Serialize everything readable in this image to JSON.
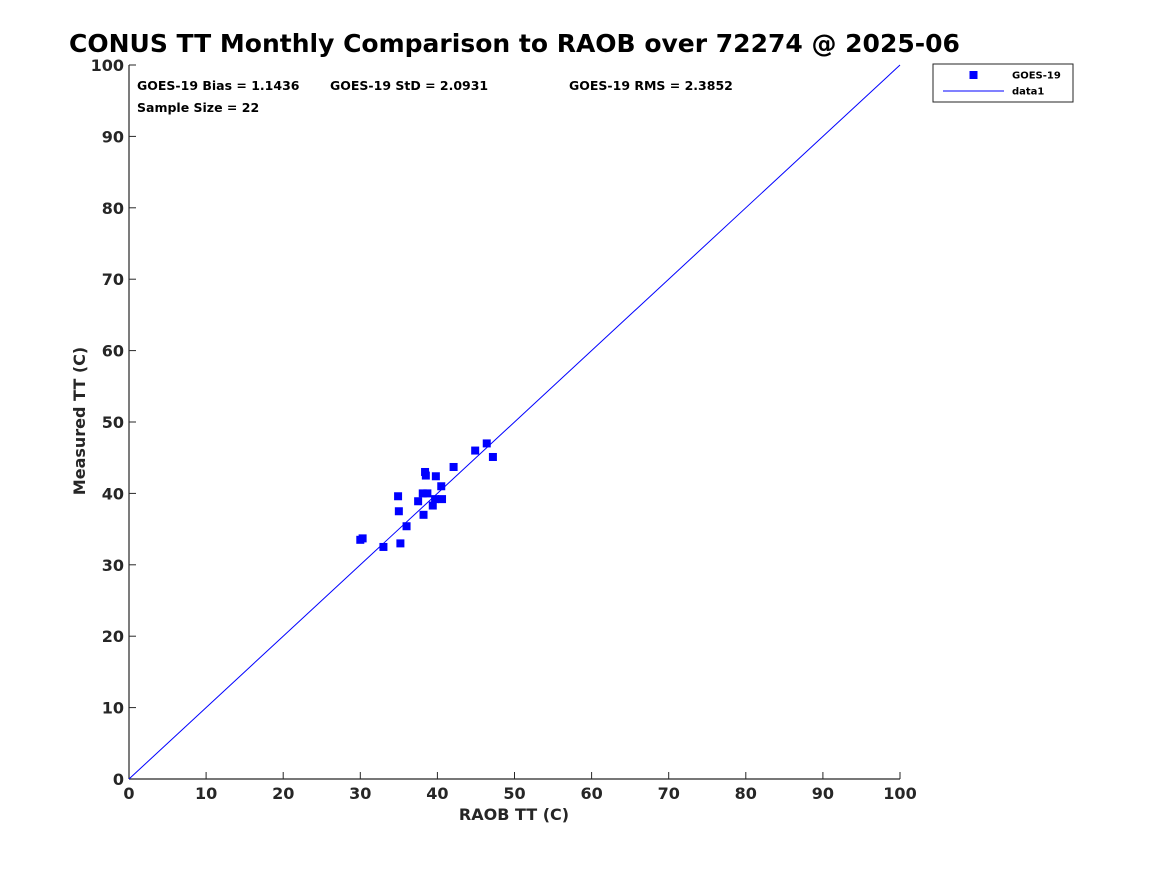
{
  "chart_data": {
    "type": "scatter",
    "title": "CONUS TT Monthly Comparison to RAOB over 72274 @ 2025-06",
    "xlabel": "RAOB TT (C)",
    "ylabel": "Measured TT (C)",
    "xlim": [
      0,
      100
    ],
    "ylim": [
      0,
      100
    ],
    "xticks": [
      0,
      10,
      20,
      30,
      40,
      50,
      60,
      70,
      80,
      90,
      100
    ],
    "yticks": [
      0,
      10,
      20,
      30,
      40,
      50,
      60,
      70,
      80,
      90,
      100
    ],
    "grid": false,
    "legend_position": "top-right, outside plot area",
    "series": [
      {
        "name": "GOES-19",
        "kind": "scatter",
        "marker": "square",
        "color": "#0000ff",
        "points": [
          [
            30.0,
            33.5
          ],
          [
            30.3,
            33.7
          ],
          [
            33.0,
            32.5
          ],
          [
            34.9,
            39.6
          ],
          [
            35.0,
            37.5
          ],
          [
            35.2,
            33.0
          ],
          [
            36.0,
            35.4
          ],
          [
            37.5,
            38.9
          ],
          [
            38.1,
            40.0
          ],
          [
            38.2,
            37.0
          ],
          [
            38.4,
            43.0
          ],
          [
            38.5,
            42.5
          ],
          [
            38.7,
            40.0
          ],
          [
            39.4,
            38.3
          ],
          [
            39.7,
            39.2
          ],
          [
            39.8,
            42.4
          ],
          [
            40.5,
            41.0
          ],
          [
            40.6,
            39.2
          ],
          [
            42.1,
            43.7
          ],
          [
            44.9,
            46.0
          ],
          [
            46.4,
            47.0
          ],
          [
            47.2,
            45.1
          ]
        ]
      },
      {
        "name": "data1",
        "kind": "line",
        "color": "#0000ff",
        "points": [
          [
            0,
            0
          ],
          [
            100,
            100
          ]
        ]
      }
    ],
    "annotations": {
      "bias": "GOES-19 Bias = 1.1436",
      "std": "GOES-19 StD = 2.0931",
      "rms": "GOES-19 RMS = 2.3852",
      "sample_size": "Sample Size = 22"
    }
  }
}
